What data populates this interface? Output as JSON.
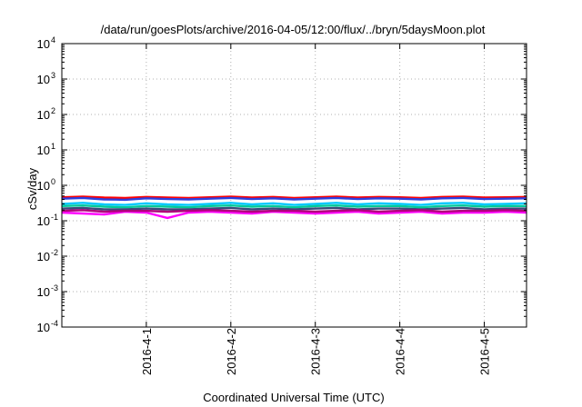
{
  "chart_data": {
    "type": "line",
    "title": "/data/run/goesPlots/archive/2016-04-05/12:00/flux/../bryn/5daysMoon.plot",
    "xlabel": "Coordinated Universal Time (UTC)",
    "ylabel": "cSv/day",
    "yscale": "log",
    "ylim": [
      0.0001,
      10000
    ],
    "y_ticks": [
      {
        "base": "10",
        "exp": "-4",
        "value": 0.0001
      },
      {
        "base": "10",
        "exp": "-3",
        "value": 0.001
      },
      {
        "base": "10",
        "exp": "-2",
        "value": 0.01
      },
      {
        "base": "10",
        "exp": "-1",
        "value": 0.1
      },
      {
        "base": "10",
        "exp": "0",
        "value": 1
      },
      {
        "base": "10",
        "exp": "1",
        "value": 10
      },
      {
        "base": "10",
        "exp": "2",
        "value": 100
      },
      {
        "base": "10",
        "exp": "3",
        "value": 1000
      },
      {
        "base": "10",
        "exp": "4",
        "value": 10000
      }
    ],
    "xlim": [
      "2016-03-31T00:00",
      "2016-04-05T12:00"
    ],
    "x_ticks": [
      {
        "label": "2016-4-1",
        "value": "2016-04-01T00:00"
      },
      {
        "label": "2016-4-2",
        "value": "2016-04-02T00:00"
      },
      {
        "label": "2016-4-3",
        "value": "2016-04-03T00:00"
      },
      {
        "label": "2016-4-4",
        "value": "2016-04-04T00:00"
      },
      {
        "label": "2016-4-5",
        "value": "2016-04-05T00:00"
      }
    ],
    "grid": true,
    "x": [
      "2016-03-31T00:00",
      "2016-03-31T06:00",
      "2016-03-31T12:00",
      "2016-03-31T18:00",
      "2016-04-01T00:00",
      "2016-04-01T06:00",
      "2016-04-01T12:00",
      "2016-04-01T18:00",
      "2016-04-02T00:00",
      "2016-04-02T06:00",
      "2016-04-02T12:00",
      "2016-04-02T18:00",
      "2016-04-03T00:00",
      "2016-04-03T06:00",
      "2016-04-03T12:00",
      "2016-04-03T18:00",
      "2016-04-04T00:00",
      "2016-04-04T06:00",
      "2016-04-04T12:00",
      "2016-04-04T18:00",
      "2016-04-05T00:00",
      "2016-04-05T06:00",
      "2016-04-05T12:00"
    ],
    "series": [
      {
        "color": "#ff0000",
        "values": [
          0.46,
          0.48,
          0.45,
          0.44,
          0.47,
          0.45,
          0.44,
          0.46,
          0.48,
          0.45,
          0.47,
          0.44,
          0.46,
          0.48,
          0.45,
          0.47,
          0.46,
          0.44,
          0.47,
          0.48,
          0.45,
          0.46,
          0.47
        ]
      },
      {
        "color": "#2d3fe0",
        "values": [
          0.42,
          0.44,
          0.4,
          0.39,
          0.43,
          0.41,
          0.4,
          0.42,
          0.44,
          0.41,
          0.43,
          0.4,
          0.42,
          0.44,
          0.41,
          0.43,
          0.42,
          0.4,
          0.43,
          0.44,
          0.41,
          0.42,
          0.43
        ]
      },
      {
        "color": "#00c8ff",
        "values": [
          0.3,
          0.32,
          0.29,
          0.28,
          0.31,
          0.29,
          0.28,
          0.3,
          0.32,
          0.29,
          0.31,
          0.28,
          0.3,
          0.32,
          0.29,
          0.31,
          0.3,
          0.28,
          0.31,
          0.32,
          0.29,
          0.3,
          0.31
        ]
      },
      {
        "color": "#00c89a",
        "values": [
          0.26,
          0.27,
          0.25,
          0.24,
          0.26,
          0.25,
          0.24,
          0.26,
          0.27,
          0.25,
          0.26,
          0.24,
          0.26,
          0.27,
          0.25,
          0.26,
          0.26,
          0.24,
          0.26,
          0.27,
          0.25,
          0.26,
          0.26
        ]
      },
      {
        "color": "#3a4a7a",
        "values": [
          0.22,
          0.23,
          0.21,
          0.21,
          0.22,
          0.21,
          0.21,
          0.22,
          0.23,
          0.21,
          0.22,
          0.21,
          0.22,
          0.23,
          0.21,
          0.22,
          0.22,
          0.21,
          0.22,
          0.23,
          0.21,
          0.22,
          0.22
        ]
      },
      {
        "color": "#ff00ff",
        "values": [
          0.17,
          0.16,
          0.15,
          0.18,
          0.17,
          0.12,
          0.17,
          0.18,
          0.17,
          0.16,
          0.18,
          0.17,
          0.16,
          0.17,
          0.18,
          0.16,
          0.17,
          0.18,
          0.16,
          0.17,
          0.17,
          0.18,
          0.17
        ]
      },
      {
        "color": "#b0007a",
        "values": [
          0.19,
          0.2,
          0.18,
          0.19,
          0.19,
          0.18,
          0.19,
          0.2,
          0.19,
          0.18,
          0.19,
          0.19,
          0.18,
          0.19,
          0.2,
          0.18,
          0.19,
          0.2,
          0.18,
          0.19,
          0.19,
          0.2,
          0.19
        ]
      }
    ]
  }
}
